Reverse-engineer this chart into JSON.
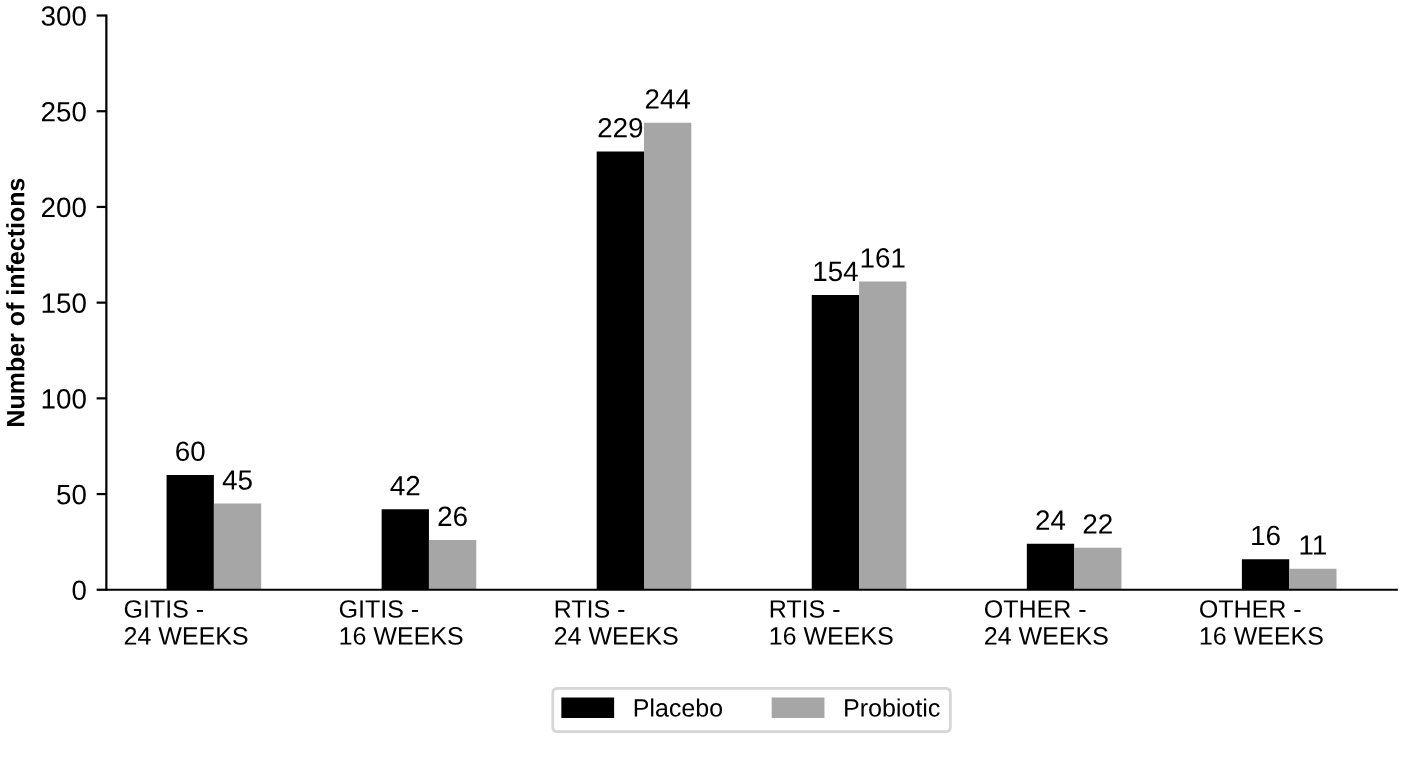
{
  "chart_data": {
    "type": "bar",
    "ylabel": "Number of infections",
    "categories": [
      "GITIS - 24 WEEKS",
      "GITIS - 16 WEEKS",
      "RTIS - 24 WEEKS",
      "RTIS - 16 WEEKS",
      "OTHER - 24 WEEKS",
      "OTHER - 16 WEEKS"
    ],
    "series": [
      {
        "name": "Placebo",
        "color": "#000000",
        "values": [
          60,
          42,
          229,
          154,
          24,
          16
        ]
      },
      {
        "name": "Probiotic",
        "color": "#a6a6a6",
        "values": [
          45,
          26,
          244,
          161,
          22,
          11
        ]
      }
    ],
    "ylim": [
      0,
      300
    ],
    "yticks": [
      0,
      50,
      100,
      150,
      200,
      250,
      300
    ],
    "grid": false,
    "legend": "bottom",
    "data_labels": true
  }
}
